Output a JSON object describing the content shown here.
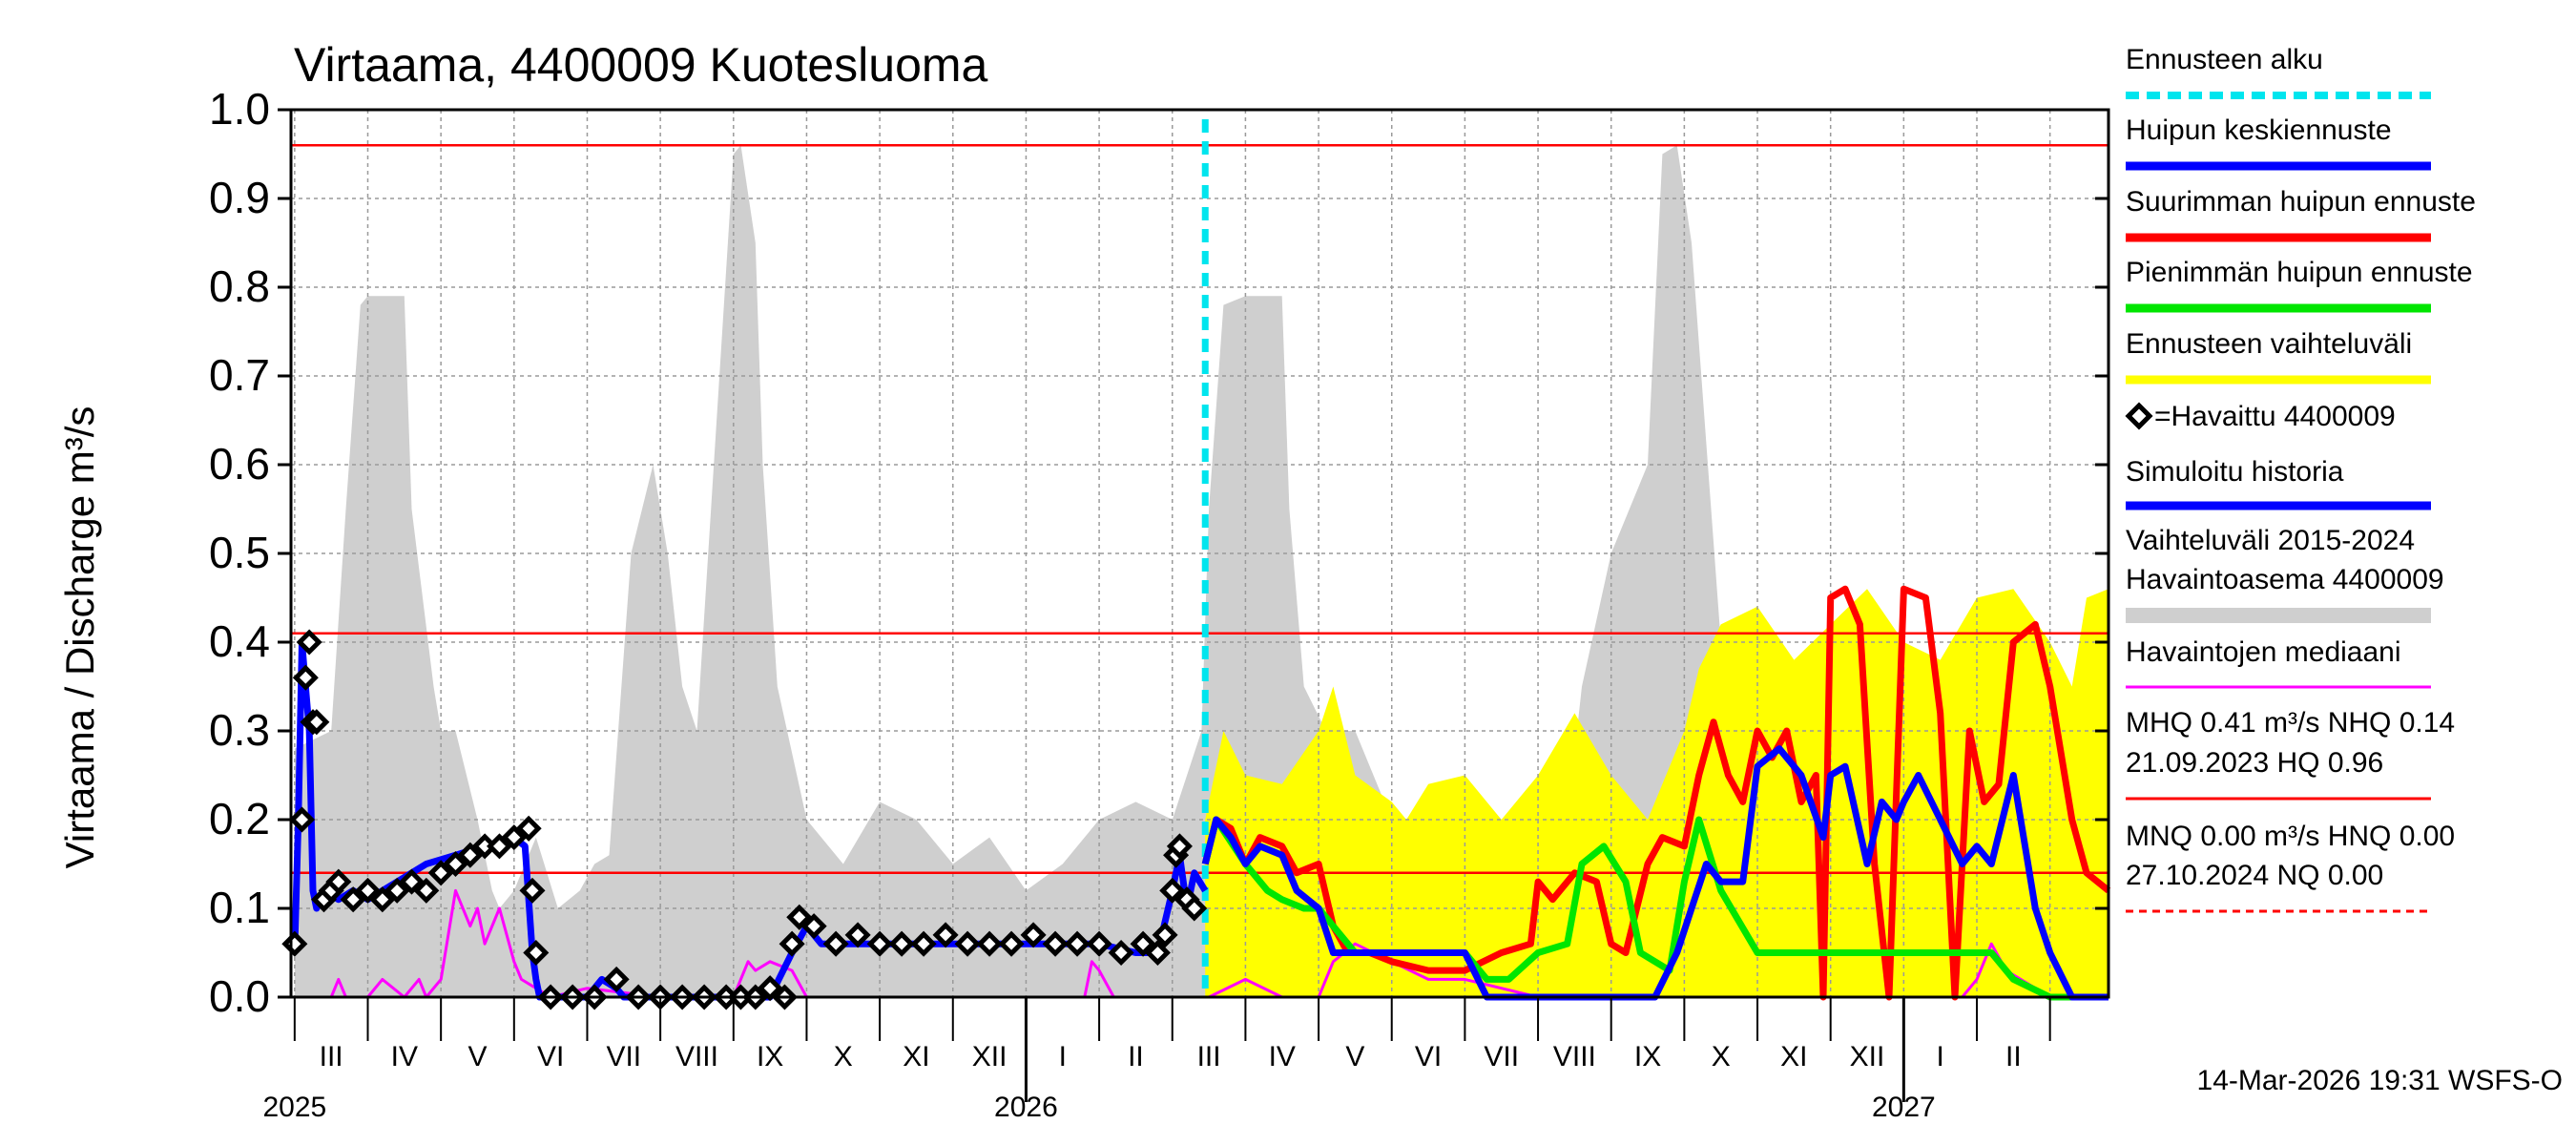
{
  "colors": {
    "grid": "#9a9a9a",
    "hist_range": "#cfcfcf",
    "forecast_range": "#ffff00",
    "mean_forecast": "#0000ff",
    "max_forecast": "#ff0000",
    "min_forecast": "#00e600",
    "simulated": "#0000ff",
    "median": "#ff00ff",
    "forecast_start": "#00e5ee",
    "ref_lines": "#ff0000"
  },
  "chart_data": {
    "type": "line",
    "title": "Virtaama, 4400009 Kuotesluoma",
    "ylabel": "Virtaama / Discharge     m³/s",
    "ylim": [
      0.0,
      1.0
    ],
    "yticks": [
      "0.0",
      "0.1",
      "0.2",
      "0.3",
      "0.4",
      "0.5",
      "0.6",
      "0.7",
      "0.8",
      "0.9",
      "1.0"
    ],
    "x_unit": "months since 2025-03-01",
    "xlim": [
      -0.05,
      24.8
    ],
    "months": [
      "III",
      "IV",
      "V",
      "VI",
      "VII",
      "VIII",
      "IX",
      "X",
      "XI",
      "XII",
      "I",
      "II",
      "III",
      "IV",
      "V",
      "VI",
      "VII",
      "VIII",
      "IX",
      "X",
      "XI",
      "XII",
      "I",
      "II"
    ],
    "years": [
      {
        "label": "2025",
        "x": 0.0
      },
      {
        "label": "2026",
        "x": 10.0
      },
      {
        "label": "2027",
        "x": 22.0
      }
    ],
    "forecast_start_x": 12.45,
    "reference_lines": [
      {
        "name": "HQ",
        "value": 0.96
      },
      {
        "name": "MHQ",
        "value": 0.41
      },
      {
        "name": "NHQ",
        "value": 0.14
      }
    ],
    "series": [
      {
        "name": "Vaihteluväli 2015-2024 Havaintoasema 4400009",
        "style": "area",
        "x": [
          0,
          0.5,
          0.7,
          0.9,
          1.0,
          1.5,
          1.6,
          1.9,
          2.0,
          2.2,
          2.5,
          2.7,
          2.8,
          3.0,
          3.3,
          3.6,
          3.9,
          4.1,
          4.3,
          4.6,
          4.9,
          5.1,
          5.3,
          5.5,
          6.0,
          6.1,
          6.3,
          6.4,
          6.6,
          7.0,
          7.5,
          8.0,
          8.5,
          9.0,
          9.5,
          10.0,
          10.5,
          11.0,
          11.5,
          12.0,
          12.4,
          12.5,
          12.7,
          13.0,
          13.5,
          13.6,
          13.8,
          14.1,
          14.5,
          15.0,
          15.5,
          16.0,
          16.5,
          17.0,
          17.4,
          17.6,
          18.0,
          18.5,
          18.7,
          18.9,
          19.1,
          19.5,
          20.0,
          20.5,
          21.0,
          21.5,
          22.0,
          22.5,
          23.0,
          23.5,
          24.0,
          24.5,
          24.8
        ],
        "values": [
          0.28,
          0.3,
          0.55,
          0.78,
          0.79,
          0.79,
          0.55,
          0.35,
          0.3,
          0.3,
          0.2,
          0.12,
          0.1,
          0.12,
          0.18,
          0.1,
          0.12,
          0.15,
          0.16,
          0.5,
          0.6,
          0.5,
          0.35,
          0.3,
          0.95,
          0.96,
          0.85,
          0.6,
          0.35,
          0.2,
          0.15,
          0.22,
          0.2,
          0.15,
          0.18,
          0.12,
          0.15,
          0.2,
          0.22,
          0.2,
          0.3,
          0.55,
          0.78,
          0.79,
          0.79,
          0.55,
          0.35,
          0.3,
          0.3,
          0.2,
          0.12,
          0.1,
          0.12,
          0.18,
          0.2,
          0.35,
          0.5,
          0.6,
          0.95,
          0.96,
          0.85,
          0.4,
          0.3,
          0.2,
          0.15,
          0.22,
          0.2,
          0.12,
          0.15,
          0.18,
          0.22,
          0.2,
          0.22
        ]
      },
      {
        "name": "Ennusteen vaihteluväli",
        "style": "area",
        "x": [
          12.45,
          12.7,
          13.0,
          13.5,
          14.0,
          14.2,
          14.5,
          15.0,
          15.2,
          15.5,
          16.0,
          16.5,
          17.0,
          17.5,
          18.0,
          18.5,
          19.0,
          19.2,
          19.5,
          20.0,
          20.5,
          21.0,
          21.5,
          22.0,
          22.5,
          23.0,
          23.5,
          24.0,
          24.3,
          24.5,
          24.8
        ],
        "values": [
          0.2,
          0.3,
          0.25,
          0.24,
          0.3,
          0.35,
          0.25,
          0.22,
          0.2,
          0.24,
          0.25,
          0.2,
          0.25,
          0.32,
          0.25,
          0.2,
          0.3,
          0.37,
          0.42,
          0.44,
          0.38,
          0.42,
          0.46,
          0.4,
          0.38,
          0.45,
          0.46,
          0.4,
          0.35,
          0.45,
          0.46
        ]
      },
      {
        "name": "Havaintojen mediaani",
        "style": "line",
        "x": [
          0,
          0.5,
          0.6,
          0.7,
          1.0,
          1.2,
          1.5,
          1.7,
          1.8,
          2.0,
          2.2,
          2.4,
          2.5,
          2.6,
          2.8,
          3.0,
          3.1,
          3.3,
          3.5,
          4.0,
          5.0,
          5.5,
          6.0,
          6.2,
          6.3,
          6.5,
          6.8,
          7.0,
          7.5,
          8.0,
          9.0,
          10.0,
          10.8,
          10.9,
          11.0,
          11.2,
          11.5,
          12.0,
          12.5,
          13.0,
          13.5,
          14.0,
          14.2,
          14.5,
          15.0,
          15.5,
          16.0,
          17.0,
          18.0,
          19.0,
          20.0,
          21.0,
          22.0,
          22.5,
          22.8,
          23.0,
          23.2,
          23.4,
          23.6,
          24.0,
          24.5,
          24.8
        ],
        "values": [
          0.0,
          0.0,
          0.02,
          0.0,
          0.0,
          0.02,
          0.0,
          0.02,
          0.0,
          0.02,
          0.12,
          0.08,
          0.1,
          0.06,
          0.1,
          0.04,
          0.02,
          0.01,
          0.0,
          0.01,
          0.0,
          0.0,
          0.0,
          0.04,
          0.03,
          0.04,
          0.03,
          0.0,
          0.0,
          0.0,
          0.0,
          0.0,
          0.0,
          0.04,
          0.03,
          0.0,
          0.0,
          0.0,
          0.0,
          0.02,
          0.0,
          0.0,
          0.04,
          0.06,
          0.04,
          0.02,
          0.02,
          0.0,
          0.0,
          0.0,
          0.0,
          0.0,
          0.0,
          0.0,
          0.0,
          0.02,
          0.06,
          0.03,
          0.02,
          0.0,
          0.0,
          0.0
        ]
      },
      {
        "name": "Simuloitu historia",
        "style": "line",
        "x": [
          0.0,
          0.05,
          0.1,
          0.15,
          0.2,
          0.25,
          0.3,
          0.4,
          0.6,
          0.8,
          1.0,
          1.4,
          1.8,
          2.2,
          2.6,
          3.0,
          3.15,
          3.25,
          3.3,
          3.35,
          3.5,
          4.0,
          4.2,
          4.4,
          4.5,
          5.0,
          6.0,
          6.5,
          6.8,
          7.0,
          7.2,
          7.5,
          8.0,
          9.0,
          10.0,
          11.0,
          11.5,
          11.8,
          12.0,
          12.1,
          12.2,
          12.3,
          12.45
        ],
        "values": [
          0.05,
          0.2,
          0.4,
          0.35,
          0.3,
          0.12,
          0.1,
          0.12,
          0.11,
          0.12,
          0.11,
          0.13,
          0.15,
          0.16,
          0.17,
          0.18,
          0.17,
          0.05,
          0.02,
          0.0,
          0.0,
          0.0,
          0.02,
          0.01,
          0.0,
          0.0,
          0.0,
          0.0,
          0.05,
          0.08,
          0.06,
          0.06,
          0.06,
          0.06,
          0.06,
          0.06,
          0.05,
          0.05,
          0.12,
          0.16,
          0.1,
          0.14,
          0.12
        ]
      },
      {
        "name": "Suurimman huipun ennuste",
        "style": "line",
        "x": [
          12.45,
          12.6,
          12.8,
          13.0,
          13.2,
          13.5,
          13.7,
          14.0,
          14.2,
          14.4,
          14.7,
          15.0,
          15.5,
          16.0,
          16.5,
          16.9,
          17.0,
          17.2,
          17.5,
          17.8,
          18.0,
          18.2,
          18.5,
          18.7,
          19.0,
          19.2,
          19.4,
          19.6,
          19.8,
          20.0,
          20.2,
          20.4,
          20.6,
          20.8,
          20.9,
          21.0,
          21.2,
          21.4,
          21.6,
          21.8,
          22.0,
          22.3,
          22.5,
          22.7,
          22.9,
          23.1,
          23.3,
          23.5,
          23.8,
          24.0,
          24.3,
          24.5,
          24.8
        ],
        "values": [
          0.15,
          0.2,
          0.19,
          0.15,
          0.18,
          0.17,
          0.14,
          0.15,
          0.08,
          0.05,
          0.05,
          0.04,
          0.03,
          0.03,
          0.05,
          0.06,
          0.13,
          0.11,
          0.14,
          0.13,
          0.06,
          0.05,
          0.15,
          0.18,
          0.17,
          0.25,
          0.31,
          0.25,
          0.22,
          0.3,
          0.27,
          0.3,
          0.22,
          0.25,
          0.0,
          0.45,
          0.46,
          0.42,
          0.15,
          0.0,
          0.46,
          0.45,
          0.32,
          0.0,
          0.3,
          0.22,
          0.24,
          0.4,
          0.42,
          0.35,
          0.2,
          0.14,
          0.12
        ]
      },
      {
        "name": "Pienimmän huipun ennuste",
        "style": "line",
        "x": [
          12.45,
          12.6,
          13.0,
          13.3,
          13.5,
          13.8,
          14.0,
          14.5,
          15.0,
          15.5,
          16.0,
          16.3,
          16.6,
          17.0,
          17.4,
          17.6,
          17.9,
          18.2,
          18.4,
          18.8,
          19.0,
          19.2,
          19.5,
          20.0,
          20.5,
          21.0,
          21.5,
          22.0,
          22.5,
          22.8,
          23.0,
          23.2,
          23.5,
          24.0,
          24.5,
          24.8
        ],
        "values": [
          0.15,
          0.2,
          0.15,
          0.12,
          0.11,
          0.1,
          0.1,
          0.05,
          0.05,
          0.05,
          0.05,
          0.02,
          0.02,
          0.05,
          0.06,
          0.15,
          0.17,
          0.13,
          0.05,
          0.03,
          0.13,
          0.2,
          0.12,
          0.05,
          0.05,
          0.05,
          0.05,
          0.05,
          0.05,
          0.05,
          0.05,
          0.05,
          0.02,
          0.0,
          0.0,
          0.0
        ]
      },
      {
        "name": "Huipun keskiennuste",
        "style": "line",
        "x": [
          12.45,
          12.6,
          12.8,
          13.0,
          13.2,
          13.5,
          13.7,
          14.0,
          14.2,
          14.5,
          15.0,
          15.5,
          16.0,
          16.3,
          16.6,
          17.0,
          17.5,
          18.0,
          18.3,
          18.6,
          18.9,
          19.1,
          19.3,
          19.5,
          19.8,
          20.0,
          20.3,
          20.6,
          20.9,
          21.0,
          21.2,
          21.5,
          21.7,
          21.9,
          22.0,
          22.2,
          22.5,
          22.8,
          23.0,
          23.2,
          23.5,
          23.8,
          24.0,
          24.3,
          24.5,
          24.8
        ],
        "values": [
          0.15,
          0.2,
          0.18,
          0.15,
          0.17,
          0.16,
          0.12,
          0.1,
          0.05,
          0.05,
          0.05,
          0.05,
          0.05,
          0.0,
          0.0,
          0.0,
          0.0,
          0.0,
          0.0,
          0.0,
          0.05,
          0.1,
          0.15,
          0.13,
          0.13,
          0.26,
          0.28,
          0.25,
          0.18,
          0.25,
          0.26,
          0.15,
          0.22,
          0.2,
          0.22,
          0.25,
          0.2,
          0.15,
          0.17,
          0.15,
          0.25,
          0.1,
          0.05,
          0.0,
          0.0,
          0.0
        ]
      }
    ],
    "observed": {
      "name": "=Havaittu 4400009",
      "x": [
        0.0,
        0.1,
        0.15,
        0.2,
        0.25,
        0.3,
        0.4,
        0.5,
        0.6,
        0.8,
        1.0,
        1.2,
        1.4,
        1.6,
        1.8,
        2.0,
        2.2,
        2.4,
        2.6,
        2.8,
        3.0,
        3.2,
        3.25,
        3.3,
        3.5,
        3.8,
        4.1,
        4.4,
        4.7,
        5.0,
        5.3,
        5.6,
        5.9,
        6.1,
        6.3,
        6.5,
        6.7,
        6.8,
        6.9,
        7.1,
        7.4,
        7.7,
        8.0,
        8.3,
        8.6,
        8.9,
        9.2,
        9.5,
        9.8,
        10.1,
        10.4,
        10.7,
        11.0,
        11.3,
        11.6,
        11.8,
        11.9,
        12.0,
        12.05,
        12.1,
        12.2,
        12.3
      ],
      "values": [
        0.06,
        0.2,
        0.36,
        0.4,
        0.31,
        0.31,
        0.11,
        0.12,
        0.13,
        0.11,
        0.12,
        0.11,
        0.12,
        0.13,
        0.12,
        0.14,
        0.15,
        0.16,
        0.17,
        0.17,
        0.18,
        0.19,
        0.12,
        0.05,
        0.0,
        0.0,
        0.0,
        0.02,
        0.0,
        0.0,
        0.0,
        0.0,
        0.0,
        0.0,
        0.0,
        0.01,
        0.0,
        0.06,
        0.09,
        0.08,
        0.06,
        0.07,
        0.06,
        0.06,
        0.06,
        0.07,
        0.06,
        0.06,
        0.06,
        0.07,
        0.06,
        0.06,
        0.06,
        0.05,
        0.06,
        0.05,
        0.07,
        0.12,
        0.16,
        0.17,
        0.11,
        0.1
      ]
    }
  },
  "legend": [
    {
      "key": "forecast_start",
      "label": "Ennusteen alku",
      "style": "dash",
      "color": "#00e5ee"
    },
    {
      "key": "mean_forecast",
      "label": "Huipun keskiennuste",
      "style": "line",
      "color": "#0000ff"
    },
    {
      "key": "max_forecast",
      "label": "Suurimman huipun ennuste",
      "style": "line",
      "color": "#ff0000"
    },
    {
      "key": "min_forecast",
      "label": "Pienimmän huipun ennuste",
      "style": "line",
      "color": "#00e600"
    },
    {
      "key": "forecast_range",
      "label": "Ennusteen vaihteluväli",
      "style": "line",
      "color": "#ffff00"
    },
    {
      "key": "observed",
      "label": "=Havaittu 4400009",
      "style": "marker",
      "color": "#000000"
    },
    {
      "key": "simulated",
      "label": "Simuloitu historia",
      "style": "line",
      "color": "#0000ff"
    },
    {
      "key": "hist_range",
      "label": "Vaihteluväli 2015-2024",
      "label2": "Havaintoasema 4400009",
      "style": "band",
      "color": "#cfcfcf"
    },
    {
      "key": "median",
      "label": "Havaintojen mediaani",
      "style": "thin",
      "color": "#ff00ff"
    },
    {
      "key": "mhq",
      "label": "MHQ 0.41 m³/s NHQ 0.14",
      "label2": "21.09.2023 HQ 0.96",
      "style": "thin",
      "color": "#ff0000"
    },
    {
      "key": "mnq",
      "label": "MNQ 0.00 m³/s HNQ 0.00",
      "label2": "27.10.2024 NQ 0.00",
      "style": "dashthin",
      "color": "#ff0000"
    }
  ],
  "footer": "14-Mar-2026 19:31 WSFS-O"
}
